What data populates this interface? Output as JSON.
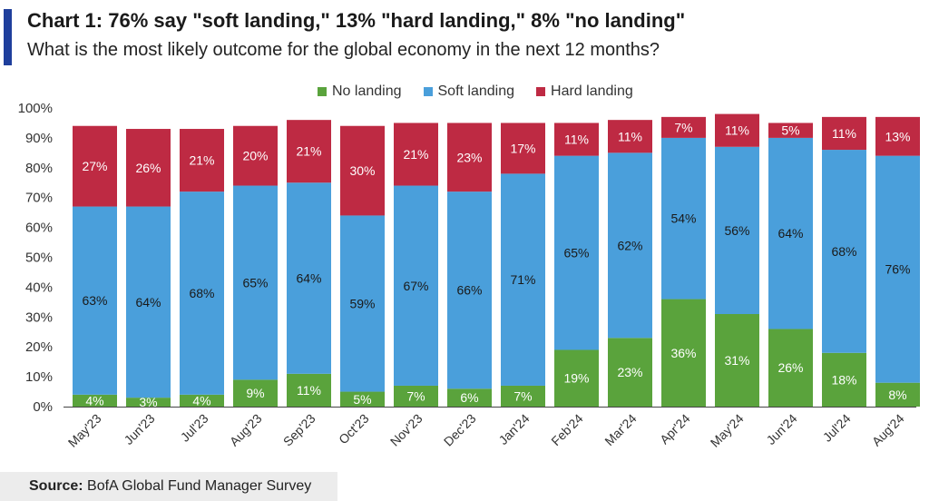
{
  "header": {
    "title": "Chart 1:  76% say \"soft landing,\" 13% \"hard landing,\" 8% \"no landing\"",
    "subtitle": "What is the most likely outcome for the global economy in the next 12 months?"
  },
  "source": {
    "label": "Source:",
    "text": "BofA Global Fund Manager Survey"
  },
  "chart_data": {
    "type": "bar",
    "stacked": true,
    "categories": [
      "May'23",
      "Jun'23",
      "Jul'23",
      "Aug'23",
      "Sep'23",
      "Oct'23",
      "Nov'23",
      "Dec'23",
      "Jan'24",
      "Feb'24",
      "Mar'24",
      "Apr'24",
      "May'24",
      "Jun'24",
      "Jul'24",
      "Aug'24"
    ],
    "series": [
      {
        "name": "No landing",
        "color": "#5aa33c",
        "values": [
          4,
          3,
          4,
          9,
          11,
          5,
          7,
          6,
          7,
          19,
          23,
          36,
          31,
          26,
          18,
          8
        ]
      },
      {
        "name": "Soft landing",
        "color": "#4a9fdb",
        "values": [
          63,
          64,
          68,
          65,
          64,
          59,
          67,
          66,
          71,
          65,
          62,
          54,
          56,
          64,
          68,
          76
        ]
      },
      {
        "name": "Hard landing",
        "color": "#be2a43",
        "values": [
          27,
          26,
          21,
          20,
          21,
          30,
          21,
          23,
          17,
          11,
          11,
          7,
          11,
          5,
          11,
          13
        ]
      }
    ],
    "ylim": [
      0,
      100
    ],
    "yticks": [
      "0%",
      "10%",
      "20%",
      "30%",
      "40%",
      "50%",
      "60%",
      "70%",
      "80%",
      "90%",
      "100%"
    ],
    "legend_position": "top",
    "grid": false
  }
}
